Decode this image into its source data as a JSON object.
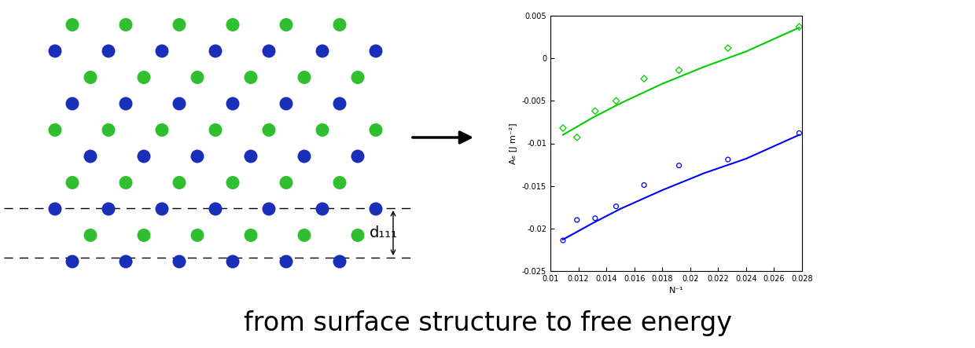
{
  "diagram": {
    "spacing_label": "d₁₁₁"
  },
  "caption": "from surface structure to free energy",
  "chart_data": {
    "type": "scatter",
    "x_label": "N⁻¹",
    "y_label": "Aₑ [J m⁻²]",
    "xlim": [
      0.01,
      0.028
    ],
    "xticks": [
      0.01,
      0.012,
      0.014,
      0.016,
      0.018,
      0.02,
      0.022,
      0.024,
      0.026,
      0.028
    ],
    "ylim": [
      -0.025,
      0.005
    ],
    "yticks": [
      -0.025,
      -0.02,
      -0.015,
      -0.01,
      -0.005,
      0,
      0.005
    ],
    "series": [
      {
        "type": "scatter",
        "color": "#00cc00",
        "marker": "diamond",
        "x": [
          0.0109,
          0.0119,
          0.0132,
          0.0147,
          0.0167,
          0.0192,
          0.0227,
          0.0278
        ],
        "values": [
          -0.0082,
          -0.0093,
          -0.0062,
          -0.005,
          -0.0024,
          -0.0014,
          0.0012,
          0.0037
        ]
      },
      {
        "type": "line",
        "color": "#00cc00",
        "line_style": "solid",
        "x": [
          0.0109,
          0.013,
          0.015,
          0.018,
          0.021,
          0.024,
          0.0278
        ],
        "values": [
          -0.009,
          -0.007,
          -0.0053,
          -0.003,
          -0.001,
          0.0008,
          0.0036
        ]
      },
      {
        "type": "scatter",
        "color": "#0000ff",
        "marker": "circle",
        "x": [
          0.0109,
          0.0119,
          0.0132,
          0.0147,
          0.0167,
          0.0192,
          0.0227,
          0.0278
        ],
        "values": [
          -0.0214,
          -0.019,
          -0.0188,
          -0.0174,
          -0.0149,
          -0.0126,
          -0.0119,
          -0.0088
        ]
      },
      {
        "type": "line",
        "color": "#0000ff",
        "line_style": "solid",
        "x": [
          0.0109,
          0.013,
          0.015,
          0.018,
          0.021,
          0.024,
          0.0278
        ],
        "values": [
          -0.0213,
          -0.0194,
          -0.0177,
          -0.0155,
          -0.0135,
          -0.0118,
          -0.009
        ]
      }
    ]
  }
}
